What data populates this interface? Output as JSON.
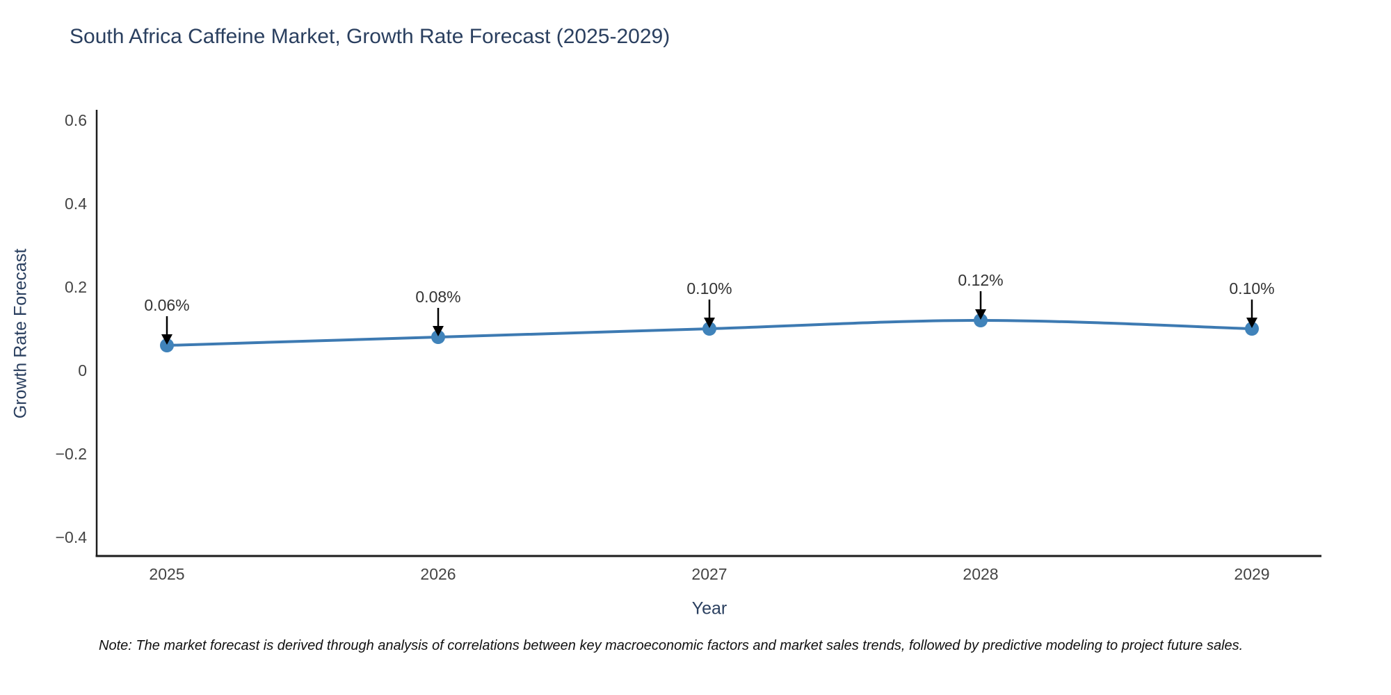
{
  "chart_data": {
    "type": "line",
    "title": "South Africa Caffeine Market, Growth Rate Forecast (2025-2029)",
    "xlabel": "Year",
    "ylabel": "Growth Rate Forecast",
    "x": [
      2025,
      2026,
      2027,
      2028,
      2029
    ],
    "series": [
      {
        "name": "Growth Rate Forecast",
        "values": [
          0.06,
          0.08,
          0.1,
          0.12,
          0.1
        ]
      }
    ],
    "point_labels": [
      "0.06%",
      "0.08%",
      "0.10%",
      "0.12%",
      "0.10%"
    ],
    "yticks": [
      -0.4,
      -0.2,
      0,
      0.2,
      0.4,
      0.6
    ],
    "ylim": [
      -0.445,
      0.622
    ],
    "grid": false,
    "legend_position": "none",
    "note": "Note: The market forecast is derived through analysis of correlations between key macroeconomic factors and market sales trends, followed by predictive modeling to project future sales."
  },
  "colors": {
    "title": "#2a3f5f",
    "axis_title": "#2a3f5f",
    "tick_label": "#444444",
    "point_label": "#333333",
    "line": "#3d7ab2",
    "marker": "#4083ba",
    "arrow": "#000000",
    "axis_line": "#1c1c1c",
    "note": "#111111",
    "background": "#ffffff"
  }
}
